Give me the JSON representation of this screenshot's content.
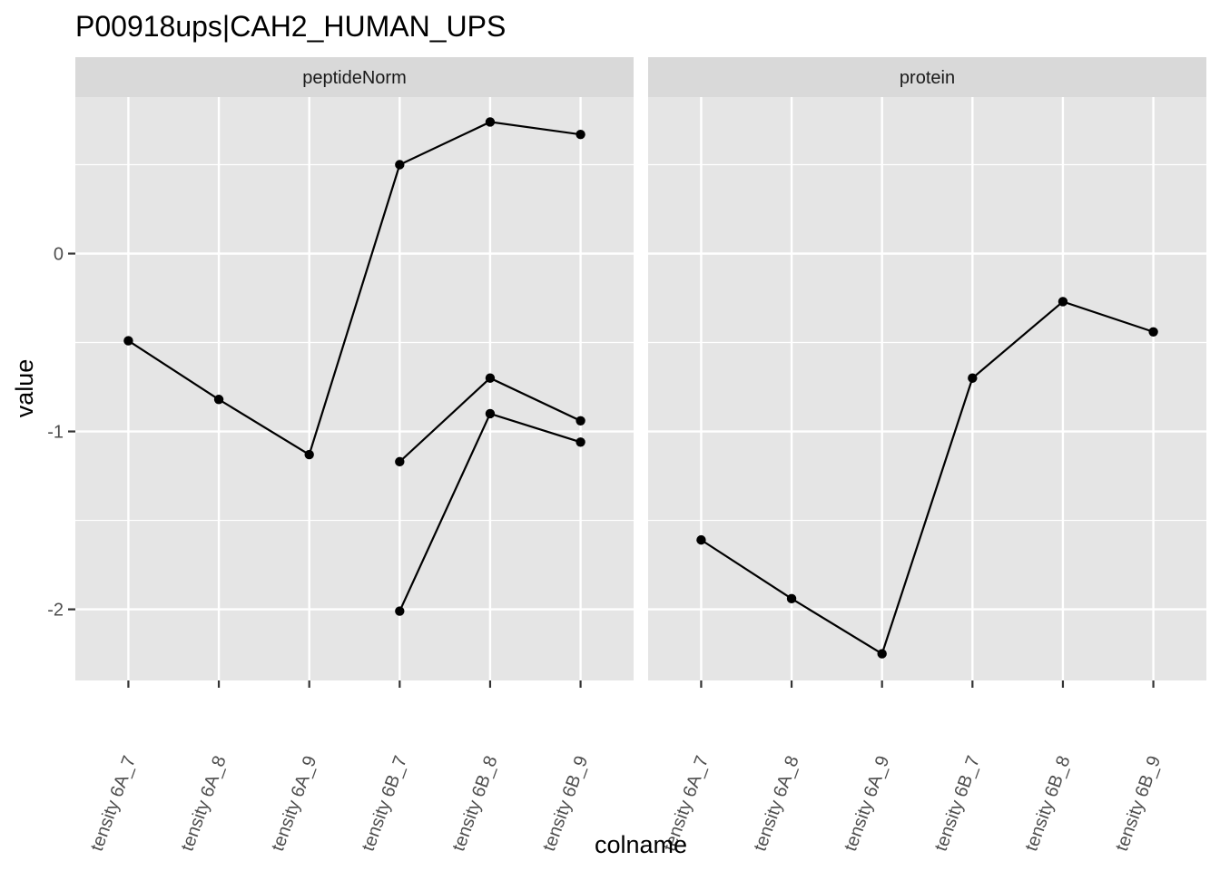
{
  "chart_data": {
    "type": "line",
    "title": "P00918ups|CAH2_HUMAN_UPS",
    "xlabel": "colname",
    "ylabel": "value",
    "categories": [
      "tensity 6A_7",
      "tensity 6A_8",
      "tensity 6A_9",
      "tensity 6B_7",
      "tensity 6B_8",
      "tensity 6B_9"
    ],
    "ylim": [
      -2.4,
      0.88
    ],
    "yticks": [
      -2,
      -1,
      0
    ],
    "ytick_labels": [
      "-2",
      "-1",
      "0"
    ],
    "grid": true,
    "legend": "none",
    "colors": {
      "panel_bg": "#e5e5e5",
      "strip_bg": "#d9d9d9",
      "grid": "#ffffff",
      "line": "#000000",
      "tick": "#333333"
    },
    "facets": [
      {
        "label": "peptideNorm",
        "lines": [
          {
            "x_index": [
              0,
              1,
              2,
              3,
              4,
              5
            ],
            "values": [
              -0.49,
              -0.82,
              -1.13,
              0.5,
              0.74,
              0.67
            ]
          },
          {
            "x_index": [
              3,
              4,
              5
            ],
            "values": [
              -1.17,
              -0.7,
              -0.94
            ]
          },
          {
            "x_index": [
              3,
              4,
              5
            ],
            "values": [
              -2.01,
              -0.9,
              -1.06
            ]
          }
        ]
      },
      {
        "label": "protein",
        "lines": [
          {
            "x_index": [
              0,
              1,
              2,
              3,
              4,
              5
            ],
            "values": [
              -1.61,
              -1.94,
              -2.25,
              -0.7,
              -0.27,
              -0.44
            ]
          }
        ]
      }
    ]
  }
}
